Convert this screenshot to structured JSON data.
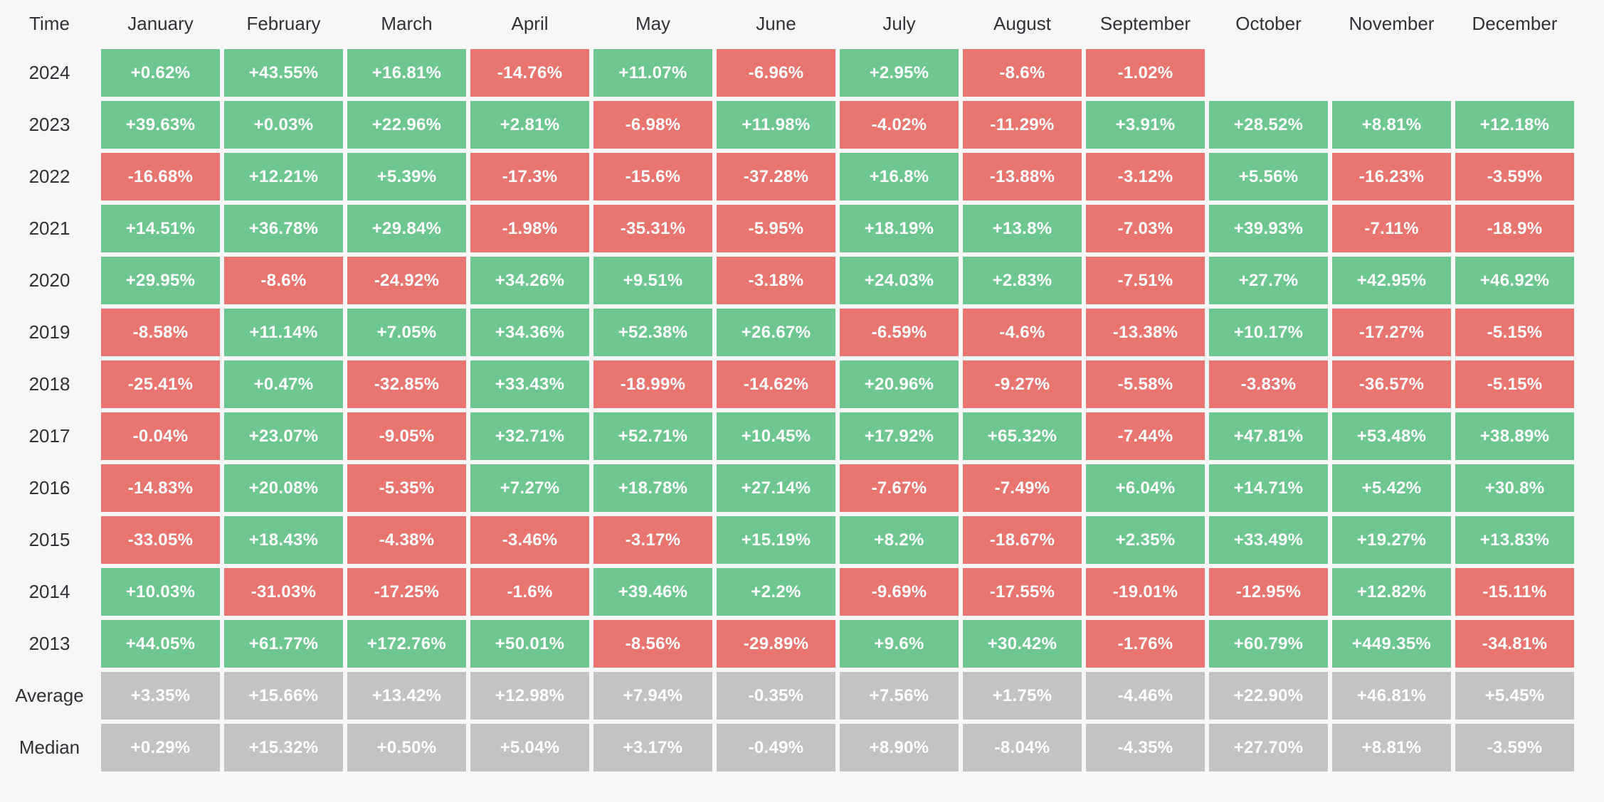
{
  "colors": {
    "positive_cell": "#6ec790",
    "negative_cell": "#e8756f",
    "summary_cell": "#c3c3c3",
    "background": "#f7f7f7",
    "header_text": "#2f3237",
    "cell_text": "#ffffff"
  },
  "chart_data": {
    "type": "heatmap",
    "description": "Monthly performance (%) by year, green = positive, red = negative, gray = summary rows",
    "columns": [
      "Time",
      "January",
      "February",
      "March",
      "April",
      "May",
      "June",
      "July",
      "August",
      "September",
      "October",
      "November",
      "December"
    ],
    "rows": [
      {
        "label": "2024",
        "type": "year",
        "cells": [
          "+0.62%",
          "+43.55%",
          "+16.81%",
          "-14.76%",
          "+11.07%",
          "-6.96%",
          "+2.95%",
          "-8.6%",
          "-1.02%",
          null,
          null,
          null
        ]
      },
      {
        "label": "2023",
        "type": "year",
        "cells": [
          "+39.63%",
          "+0.03%",
          "+22.96%",
          "+2.81%",
          "-6.98%",
          "+11.98%",
          "-4.02%",
          "-11.29%",
          "+3.91%",
          "+28.52%",
          "+8.81%",
          "+12.18%"
        ]
      },
      {
        "label": "2022",
        "type": "year",
        "cells": [
          "-16.68%",
          "+12.21%",
          "+5.39%",
          "-17.3%",
          "-15.6%",
          "-37.28%",
          "+16.8%",
          "-13.88%",
          "-3.12%",
          "+5.56%",
          "-16.23%",
          "-3.59%"
        ]
      },
      {
        "label": "2021",
        "type": "year",
        "cells": [
          "+14.51%",
          "+36.78%",
          "+29.84%",
          "-1.98%",
          "-35.31%",
          "-5.95%",
          "+18.19%",
          "+13.8%",
          "-7.03%",
          "+39.93%",
          "-7.11%",
          "-18.9%"
        ]
      },
      {
        "label": "2020",
        "type": "year",
        "cells": [
          "+29.95%",
          "-8.6%",
          "-24.92%",
          "+34.26%",
          "+9.51%",
          "-3.18%",
          "+24.03%",
          "+2.83%",
          "-7.51%",
          "+27.7%",
          "+42.95%",
          "+46.92%"
        ]
      },
      {
        "label": "2019",
        "type": "year",
        "cells": [
          "-8.58%",
          "+11.14%",
          "+7.05%",
          "+34.36%",
          "+52.38%",
          "+26.67%",
          "-6.59%",
          "-4.6%",
          "-13.38%",
          "+10.17%",
          "-17.27%",
          "-5.15%"
        ]
      },
      {
        "label": "2018",
        "type": "year",
        "cells": [
          "-25.41%",
          "+0.47%",
          "-32.85%",
          "+33.43%",
          "-18.99%",
          "-14.62%",
          "+20.96%",
          "-9.27%",
          "-5.58%",
          "-3.83%",
          "-36.57%",
          "-5.15%"
        ]
      },
      {
        "label": "2017",
        "type": "year",
        "cells": [
          "-0.04%",
          "+23.07%",
          "-9.05%",
          "+32.71%",
          "+52.71%",
          "+10.45%",
          "+17.92%",
          "+65.32%",
          "-7.44%",
          "+47.81%",
          "+53.48%",
          "+38.89%"
        ]
      },
      {
        "label": "2016",
        "type": "year",
        "cells": [
          "-14.83%",
          "+20.08%",
          "-5.35%",
          "+7.27%",
          "+18.78%",
          "+27.14%",
          "-7.67%",
          "-7.49%",
          "+6.04%",
          "+14.71%",
          "+5.42%",
          "+30.8%"
        ]
      },
      {
        "label": "2015",
        "type": "year",
        "cells": [
          "-33.05%",
          "+18.43%",
          "-4.38%",
          "-3.46%",
          "-3.17%",
          "+15.19%",
          "+8.2%",
          "-18.67%",
          "+2.35%",
          "+33.49%",
          "+19.27%",
          "+13.83%"
        ]
      },
      {
        "label": "2014",
        "type": "year",
        "cells": [
          "+10.03%",
          "-31.03%",
          "-17.25%",
          "-1.6%",
          "+39.46%",
          "+2.2%",
          "-9.69%",
          "-17.55%",
          "-19.01%",
          "-12.95%",
          "+12.82%",
          "-15.11%"
        ]
      },
      {
        "label": "2013",
        "type": "year",
        "cells": [
          "+44.05%",
          "+61.77%",
          "+172.76%",
          "+50.01%",
          "-8.56%",
          "-29.89%",
          "+9.6%",
          "+30.42%",
          "-1.76%",
          "+60.79%",
          "+449.35%",
          "-34.81%"
        ]
      },
      {
        "label": "Average",
        "type": "summary",
        "cells": [
          "+3.35%",
          "+15.66%",
          "+13.42%",
          "+12.98%",
          "+7.94%",
          "-0.35%",
          "+7.56%",
          "+1.75%",
          "-4.46%",
          "+22.90%",
          "+46.81%",
          "+5.45%"
        ]
      },
      {
        "label": "Median",
        "type": "summary",
        "cells": [
          "+0.29%",
          "+15.32%",
          "+0.50%",
          "+5.04%",
          "+3.17%",
          "-0.49%",
          "+8.90%",
          "-8.04%",
          "-4.35%",
          "+27.70%",
          "+8.81%",
          "-3.59%"
        ]
      }
    ]
  }
}
